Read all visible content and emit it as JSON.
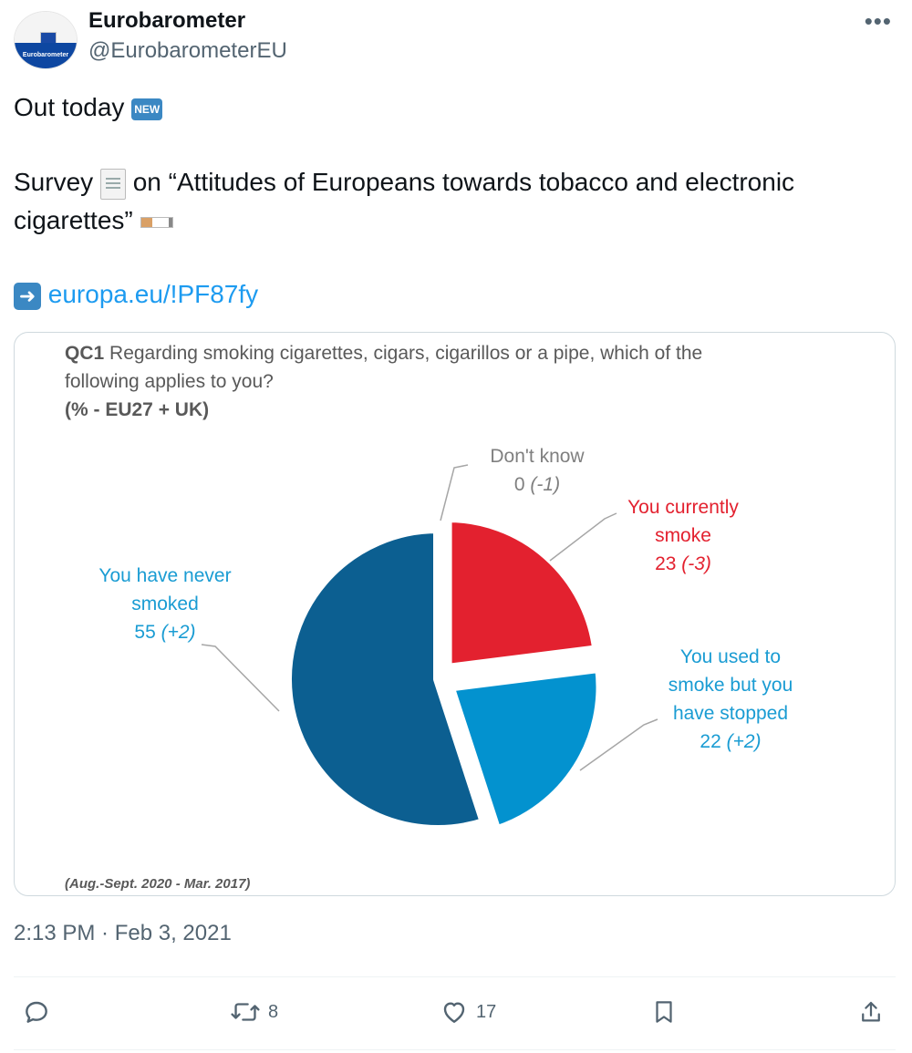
{
  "tweet": {
    "author_name": "Eurobarometer",
    "author_handle": "@EurobarometerEU",
    "avatar_text": "Eurobarometer",
    "line1_text": "Out today",
    "new_badge": "NEW",
    "line2_part1": "Survey",
    "line2_part2": "on “Attitudes of Europeans towards tobacco and electronic",
    "line3_text": "cigarettes”",
    "link_text": "europa.eu/!PF87fy",
    "timestamp": "2:13 PM · Feb 3, 2021",
    "icons": [
      "more-icon",
      "document-icon",
      "cigarette-icon",
      "arrow-right-icon",
      "reply-icon",
      "retweet-icon",
      "like-icon",
      "bookmark-icon",
      "share-icon"
    ]
  },
  "actions": {
    "retweets": "8",
    "likes": "17"
  },
  "chart_data": {
    "type": "pie",
    "title_prefix": "QC1",
    "title": "Regarding smoking cigarettes, cigars, cigarillos or a pipe, which of the following applies to you?",
    "title_line1": "Regarding smoking cigarettes, cigars, cigarillos or a pipe, which of the",
    "title_line2": "following applies to you?",
    "subtitle": "(% - EU27 + UK)",
    "footnote": "(Aug.-Sept. 2020 - Mar. 2017)",
    "slices": [
      {
        "label": "Don't know",
        "label_lines": [
          "Don't know"
        ],
        "value": 0,
        "change": "(-1)",
        "color": "#7f7f7f"
      },
      {
        "label": "You currently smoke",
        "label_lines": [
          "You currently",
          "smoke"
        ],
        "value": 23,
        "change": "(-3)",
        "color": "#e3212f"
      },
      {
        "label": "You used to smoke but you have stopped",
        "label_lines": [
          "You used to",
          "smoke but you",
          "have stopped"
        ],
        "value": 22,
        "change": "(+2)",
        "color": "#0392cf"
      },
      {
        "label": "You have never smoked",
        "label_lines": [
          "You have never",
          "smoked"
        ],
        "value": 55,
        "change": "(+2)",
        "color": "#0c5f91"
      }
    ]
  }
}
